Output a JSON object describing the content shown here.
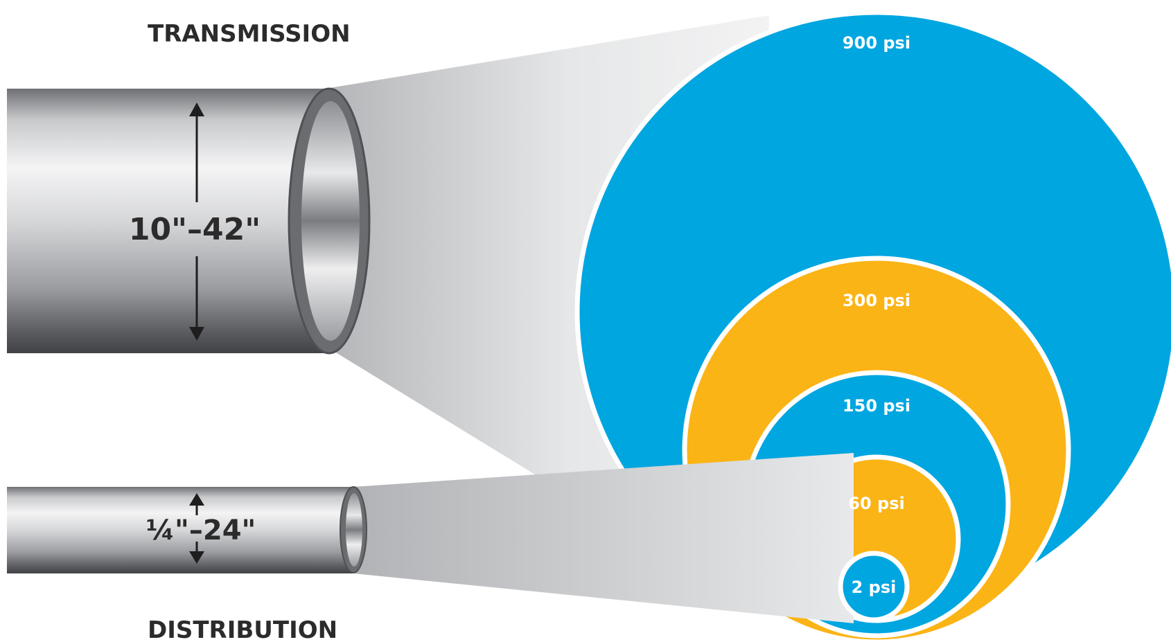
{
  "pipes": {
    "transmission": {
      "title": "TRANSMISSION",
      "size_range": "10\"–42\""
    },
    "distribution": {
      "title": "DISTRIBUTION",
      "size_range": "¼\"–24\""
    }
  },
  "pressure_rings": [
    {
      "label": "900 psi",
      "color": "#00a6e0"
    },
    {
      "label": "300 psi",
      "color": "#fbb416"
    },
    {
      "label": "150 psi",
      "color": "#00a6e0"
    },
    {
      "label": "60 psi",
      "color": "#fbb416"
    },
    {
      "label": "2 psi",
      "color": "#00a6e0"
    }
  ],
  "colors": {
    "blue": "#00a6e0",
    "yellow": "#fbb416",
    "text": "#2b2b2b"
  }
}
